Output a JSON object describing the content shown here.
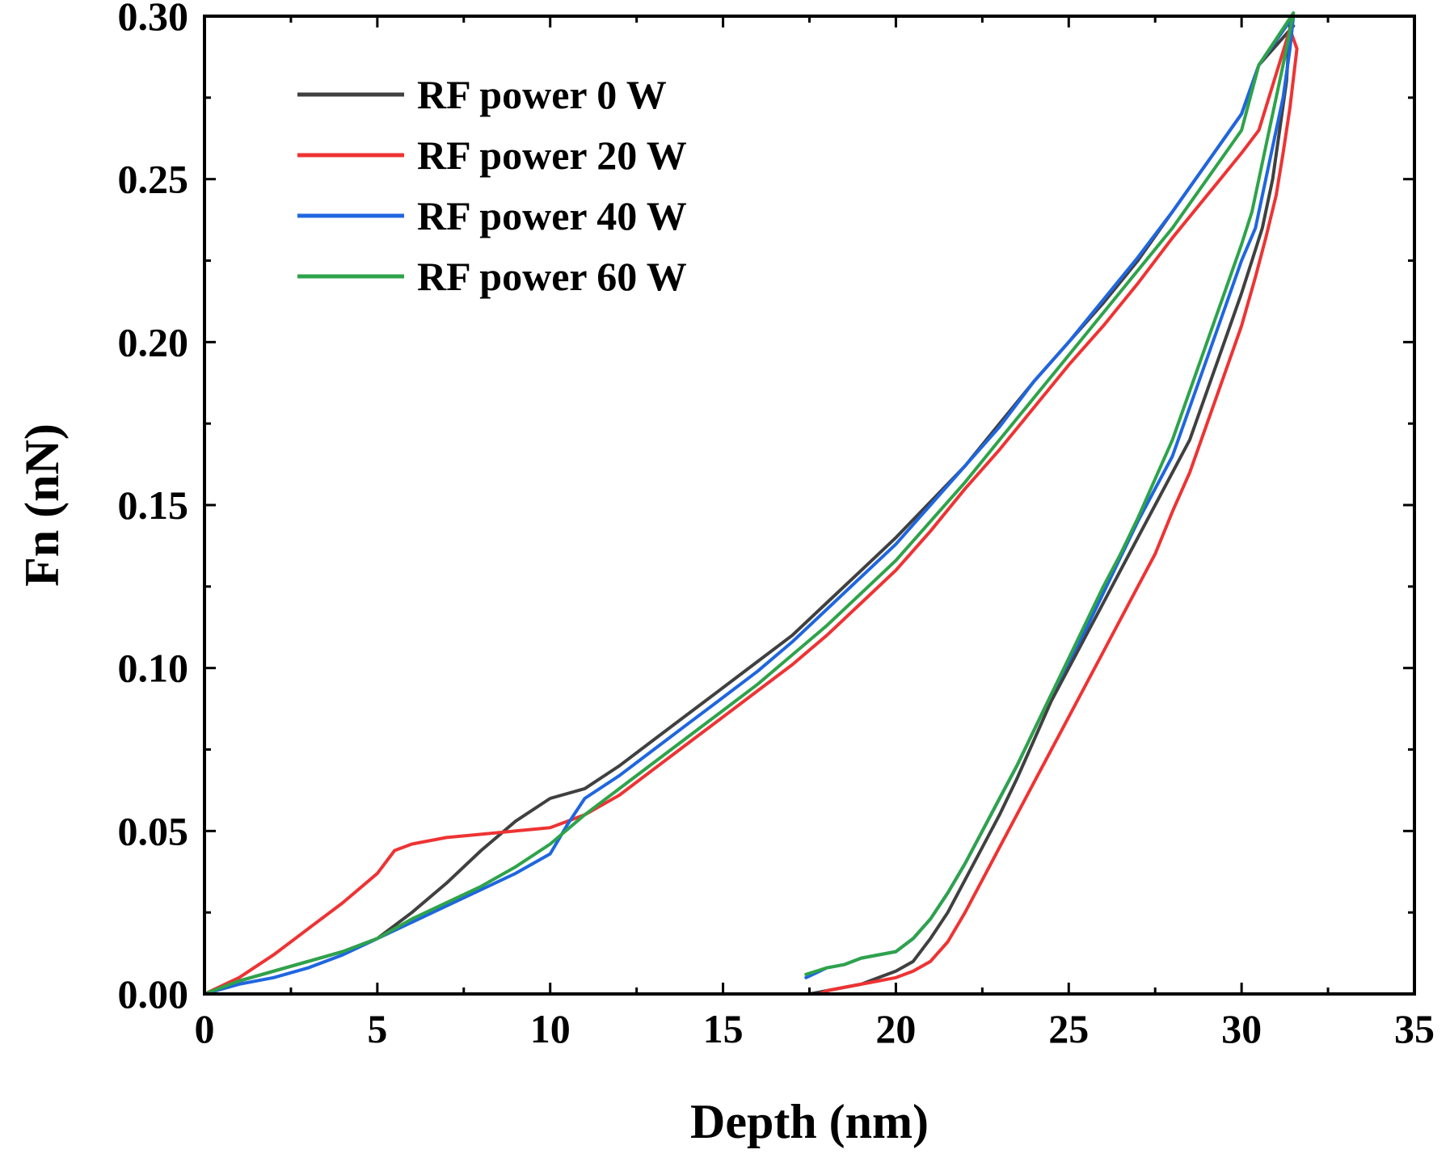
{
  "chart_data": {
    "type": "line",
    "title": "",
    "xlabel": "Depth (nm)",
    "ylabel": "Fn (nN)",
    "xlim": [
      0,
      35
    ],
    "ylim": [
      0,
      0.3
    ],
    "xticks": [
      "0",
      "5",
      "10",
      "15",
      "20",
      "25",
      "30",
      "35"
    ],
    "yticks": [
      "0.00",
      "0.05",
      "0.10",
      "0.15",
      "0.20",
      "0.25",
      "0.30"
    ],
    "legend_position": "top-left",
    "grid": false,
    "series": [
      {
        "name": "RF power 0 W",
        "color": "#404040",
        "x": [
          0,
          1,
          2,
          3,
          4,
          5,
          6,
          7,
          8,
          9,
          10,
          11,
          12,
          13,
          14,
          15,
          16,
          17,
          18,
          19,
          20,
          21,
          22,
          23,
          24,
          25,
          26,
          27,
          28,
          29,
          30,
          30.5,
          31.5,
          31.4,
          31.3,
          31.1,
          30.9,
          30.6,
          30.3,
          30,
          29.5,
          29,
          28.5,
          28,
          27.5,
          27,
          26.5,
          26,
          25.5,
          25,
          24.5,
          24,
          23.5,
          23,
          22.5,
          22,
          21.5,
          21,
          20.5,
          20,
          19.5,
          19,
          18.5,
          18,
          17.5
        ],
        "y": [
          0,
          0.004,
          0.007,
          0.01,
          0.013,
          0.017,
          0.025,
          0.034,
          0.044,
          0.053,
          0.06,
          0.063,
          0.07,
          0.078,
          0.086,
          0.094,
          0.102,
          0.11,
          0.12,
          0.13,
          0.14,
          0.151,
          0.162,
          0.175,
          0.188,
          0.2,
          0.212,
          0.225,
          0.24,
          0.255,
          0.27,
          0.285,
          0.297,
          0.297,
          0.28,
          0.265,
          0.25,
          0.235,
          0.225,
          0.215,
          0.2,
          0.185,
          0.17,
          0.16,
          0.15,
          0.14,
          0.13,
          0.12,
          0.11,
          0.1,
          0.09,
          0.078,
          0.066,
          0.055,
          0.045,
          0.035,
          0.025,
          0.017,
          0.01,
          0.007,
          0.005,
          0.003,
          0.002,
          0.001,
          0
        ]
      },
      {
        "name": "RF power 20 W",
        "color": "#ee3333",
        "x": [
          0,
          1,
          2,
          3,
          4,
          5,
          5.5,
          6,
          7,
          8,
          9,
          10,
          11,
          12,
          13,
          14,
          15,
          16,
          17,
          18,
          19,
          20,
          21,
          22,
          23,
          24,
          25,
          26,
          27,
          28,
          29,
          30,
          30.5,
          31.4,
          31.6,
          31.4,
          31.2,
          31,
          30.7,
          30.4,
          30,
          29.5,
          29,
          28.5,
          28,
          27.5,
          27,
          26.5,
          26,
          25.5,
          25,
          24.5,
          24,
          23.5,
          23,
          22.5,
          22,
          21.5,
          21,
          20.5,
          20,
          19.5,
          19,
          18.5,
          18,
          17.8
        ],
        "y": [
          0,
          0.005,
          0.012,
          0.02,
          0.028,
          0.037,
          0.044,
          0.046,
          0.048,
          0.049,
          0.05,
          0.051,
          0.055,
          0.061,
          0.069,
          0.077,
          0.085,
          0.093,
          0.101,
          0.11,
          0.12,
          0.13,
          0.142,
          0.155,
          0.167,
          0.18,
          0.193,
          0.205,
          0.218,
          0.232,
          0.245,
          0.258,
          0.265,
          0.296,
          0.29,
          0.272,
          0.258,
          0.245,
          0.232,
          0.22,
          0.205,
          0.19,
          0.175,
          0.16,
          0.148,
          0.135,
          0.125,
          0.115,
          0.105,
          0.095,
          0.085,
          0.075,
          0.065,
          0.055,
          0.045,
          0.035,
          0.025,
          0.016,
          0.01,
          0.007,
          0.005,
          0.004,
          0.003,
          0.002,
          0.001,
          0
        ]
      },
      {
        "name": "RF power 40 W",
        "color": "#1f66e0",
        "x": [
          0,
          1,
          2,
          3,
          4,
          5,
          6,
          7,
          8,
          9,
          10,
          10.5,
          11,
          12,
          13,
          14,
          15,
          16,
          17,
          18,
          19,
          20,
          21,
          22,
          23,
          24,
          25,
          26,
          27,
          28,
          29,
          30,
          30.5,
          31.5,
          31.4,
          31.2,
          31,
          30.7,
          30.4,
          30,
          29.5,
          29,
          28.5,
          28,
          27.5,
          27,
          26.5,
          26,
          25.5,
          25,
          24.5,
          24,
          23.5,
          23,
          22.5,
          22,
          21.5,
          21,
          20.5,
          20,
          19.5,
          19,
          18.5,
          18,
          17.4
        ],
        "y": [
          0,
          0.003,
          0.005,
          0.008,
          0.012,
          0.017,
          0.022,
          0.027,
          0.032,
          0.037,
          0.043,
          0.052,
          0.06,
          0.067,
          0.075,
          0.083,
          0.091,
          0.099,
          0.108,
          0.118,
          0.128,
          0.138,
          0.15,
          0.162,
          0.174,
          0.188,
          0.2,
          0.213,
          0.226,
          0.24,
          0.255,
          0.27,
          0.285,
          0.3,
          0.29,
          0.275,
          0.265,
          0.25,
          0.235,
          0.225,
          0.21,
          0.195,
          0.18,
          0.165,
          0.155,
          0.145,
          0.134,
          0.123,
          0.112,
          0.102,
          0.092,
          0.081,
          0.07,
          0.06,
          0.05,
          0.04,
          0.031,
          0.023,
          0.017,
          0.013,
          0.012,
          0.011,
          0.009,
          0.008,
          0.005
        ]
      },
      {
        "name": "RF power 60 W",
        "color": "#2ea34a",
        "x": [
          0,
          1,
          2,
          3,
          4,
          5,
          6,
          7,
          8,
          9,
          10,
          11,
          12,
          13,
          14,
          15,
          16,
          17,
          18,
          19,
          20,
          21,
          22,
          23,
          24,
          25,
          26,
          27,
          28,
          29,
          30,
          30.5,
          31.5,
          31.3,
          31.1,
          30.9,
          30.6,
          30.3,
          30,
          29.5,
          29,
          28.5,
          28,
          27.5,
          27,
          26.5,
          26,
          25.5,
          25,
          24.5,
          24,
          23.5,
          23,
          22.5,
          22,
          21.5,
          21,
          20.5,
          20,
          19.5,
          19,
          18.5,
          18,
          17.4
        ],
        "y": [
          0,
          0.004,
          0.007,
          0.01,
          0.013,
          0.017,
          0.023,
          0.028,
          0.033,
          0.039,
          0.046,
          0.055,
          0.063,
          0.071,
          0.079,
          0.087,
          0.095,
          0.104,
          0.113,
          0.123,
          0.133,
          0.145,
          0.157,
          0.17,
          0.183,
          0.196,
          0.209,
          0.222,
          0.235,
          0.25,
          0.265,
          0.285,
          0.301,
          0.29,
          0.28,
          0.27,
          0.255,
          0.24,
          0.23,
          0.215,
          0.2,
          0.185,
          0.17,
          0.158,
          0.146,
          0.135,
          0.125,
          0.114,
          0.103,
          0.092,
          0.081,
          0.07,
          0.06,
          0.05,
          0.04,
          0.031,
          0.023,
          0.017,
          0.013,
          0.012,
          0.011,
          0.009,
          0.008,
          0.006
        ]
      }
    ]
  }
}
